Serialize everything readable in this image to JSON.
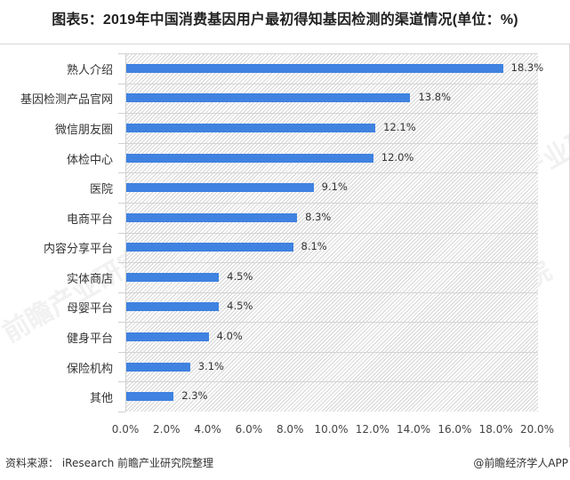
{
  "header": {
    "title": "图表5：2019年中国消费基因用户最初得知基因检测的渠道情况(单位：%)"
  },
  "footer": {
    "source": "资料来源： iResearch 前瞻产业研究院整理",
    "credit": "@前瞻经济学人APP"
  },
  "watermark": {
    "text": "前瞻产业研究院"
  },
  "colors": {
    "bar": "#3f82e0",
    "grid": "#d4d4d4",
    "text": "#333333"
  },
  "chart_data": {
    "type": "bar",
    "orientation": "horizontal",
    "title": "图表5：2019年中国消费基因用户最初得知基因检测的渠道情况(单位：%)",
    "xlabel": "",
    "ylabel": "",
    "categories": [
      "熟人介绍",
      "基因检测产品官网",
      "微信朋友圈",
      "体检中心",
      "医院",
      "电商平台",
      "内容分享平台",
      "实体商店",
      "母婴平台",
      "健身平台",
      "保险机构",
      "其他"
    ],
    "values": [
      18.3,
      13.8,
      12.1,
      12.0,
      9.1,
      8.3,
      8.1,
      4.5,
      4.5,
      4.0,
      3.1,
      2.3
    ],
    "value_labels": [
      "18.3%",
      "13.8%",
      "12.1%",
      "12.0%",
      "9.1%",
      "8.3%",
      "8.1%",
      "4.5%",
      "4.5%",
      "4.0%",
      "3.1%",
      "2.3%"
    ],
    "xlim": [
      0,
      20
    ],
    "x_ticks": [
      "0.0%",
      "2.0%",
      "4.0%",
      "6.0%",
      "8.0%",
      "10.0%",
      "12.0%",
      "14.0%",
      "16.0%",
      "18.0%",
      "20.0%"
    ],
    "grid": true,
    "legend": null,
    "source": "资料来源： iResearch 前瞻产业研究院整理"
  }
}
